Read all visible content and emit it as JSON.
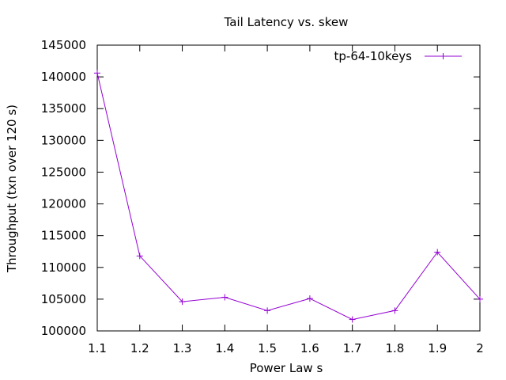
{
  "chart_data": {
    "type": "line",
    "title": "Tail Latency vs. skew",
    "xlabel": "Power Law s",
    "ylabel": "Throughput (txn over 120 s)",
    "xlim": [
      1.1,
      2.0
    ],
    "ylim": [
      100000,
      145000
    ],
    "x_ticks": [
      "1.1",
      "1.2",
      "1.3",
      "1.4",
      "1.5",
      "1.6",
      "1.7",
      "1.8",
      "1.9",
      "2"
    ],
    "y_ticks": [
      "100000",
      "105000",
      "110000",
      "115000",
      "120000",
      "125000",
      "130000",
      "135000",
      "140000",
      "145000"
    ],
    "grid": false,
    "legend_position": "top-right",
    "series": [
      {
        "name": "tp-64-10keys",
        "color": "#9400d3",
        "marker": "plus",
        "x": [
          1.1,
          1.2,
          1.3,
          1.4,
          1.5,
          1.6,
          1.7,
          1.8,
          1.9,
          2.0
        ],
        "y": [
          140600,
          111800,
          104600,
          105300,
          103200,
          105100,
          101800,
          103200,
          112400,
          105000
        ]
      }
    ]
  }
}
